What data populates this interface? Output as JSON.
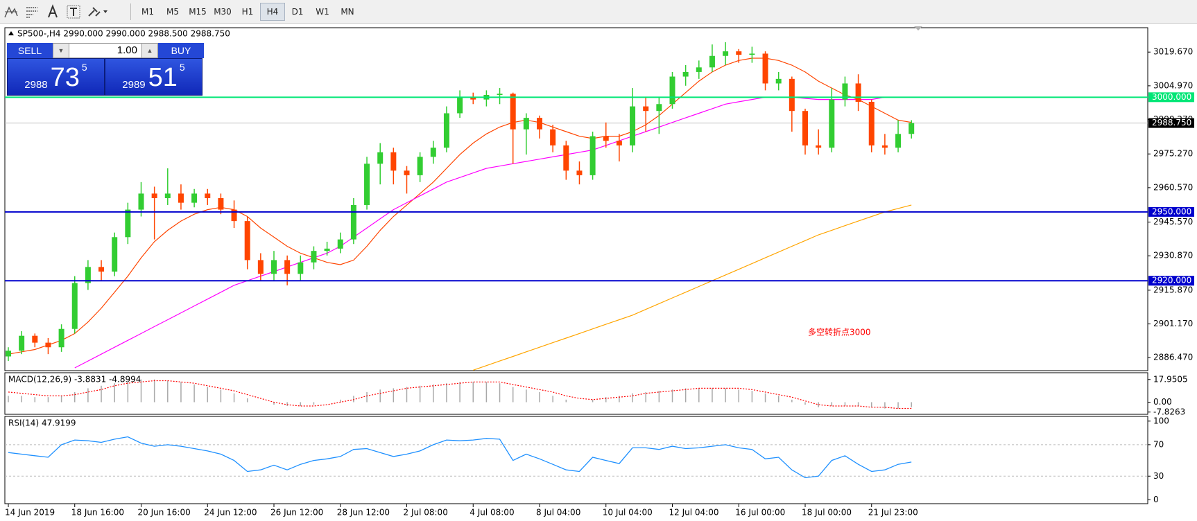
{
  "toolbar": {
    "timeframes": [
      "M1",
      "M5",
      "M15",
      "M30",
      "H1",
      "H4",
      "D1",
      "W1",
      "MN"
    ],
    "active": "H4"
  },
  "trade_panel": {
    "sell": "SELL",
    "buy": "BUY",
    "volume": "1.00",
    "bid": [
      "2988",
      "73",
      "5"
    ],
    "ask": [
      "2989",
      "51",
      "5"
    ]
  },
  "chart_data": [
    {
      "type": "candlestick",
      "title": "SP500-,H4  2990.000 2990.000 2988.500 2988.750",
      "categories": [
        "14 Jun 2019",
        null,
        null,
        null,
        null,
        "18 Jun 16:00",
        null,
        null,
        null,
        null,
        "20 Jun 16:00",
        null,
        null,
        null,
        null,
        "24 Jun 12:00",
        null,
        null,
        null,
        null,
        "26 Jun 12:00",
        null,
        null,
        null,
        null,
        "28 Jun 12:00",
        null,
        null,
        null,
        null,
        "2 Jul 08:00",
        null,
        null,
        null,
        null,
        "4 Jul 08:00",
        null,
        null,
        null,
        null,
        "8 Jul 04:00",
        null,
        null,
        null,
        null,
        "10 Jul 04:00",
        null,
        null,
        null,
        null,
        "12 Jul 04:00",
        null,
        null,
        null,
        null,
        "16 Jul 00:00",
        null,
        null,
        null,
        null,
        "18 Jul 00:00",
        null,
        null,
        null,
        null,
        "21 Jul 23:00",
        null,
        null,
        null
      ],
      "candles": [
        [
          2887,
          2891,
          2885,
          2889.5
        ],
        [
          2889.5,
          2898,
          2888,
          2896
        ],
        [
          2896,
          2897,
          2891,
          2893
        ],
        [
          2893,
          2895,
          2888,
          2891
        ],
        [
          2891,
          2901,
          2889,
          2899
        ],
        [
          2899,
          2922,
          2897,
          2919
        ],
        [
          2919,
          2929,
          2916,
          2926
        ],
        [
          2926,
          2929,
          2920,
          2924
        ],
        [
          2924,
          2941,
          2922,
          2939
        ],
        [
          2939,
          2954,
          2936,
          2951
        ],
        [
          2951,
          2963,
          2948,
          2958
        ],
        [
          2958,
          2961,
          2938,
          2956
        ],
        [
          2956,
          2969,
          2953,
          2958
        ],
        [
          2958,
          2962,
          2951,
          2954
        ],
        [
          2954,
          2960,
          2952,
          2958
        ],
        [
          2958,
          2960,
          2953,
          2956
        ],
        [
          2956,
          2958,
          2949,
          2951
        ],
        [
          2951,
          2955,
          2943,
          2946
        ],
        [
          2946,
          2948,
          2925,
          2929
        ],
        [
          2929,
          2932,
          2920,
          2923
        ],
        [
          2923,
          2933,
          2920,
          2929
        ],
        [
          2929,
          2931,
          2918,
          2923
        ],
        [
          2923,
          2931,
          2920,
          2928
        ],
        [
          2928,
          2935,
          2925,
          2933
        ],
        [
          2933,
          2937,
          2931,
          2934
        ],
        [
          2934,
          2941,
          2932,
          2938
        ],
        [
          2938,
          2956,
          2936,
          2953
        ],
        [
          2953,
          2974,
          2951,
          2971
        ],
        [
          2971,
          2980,
          2962,
          2976
        ],
        [
          2976,
          2978,
          2962,
          2968
        ],
        [
          2968,
          2970,
          2958,
          2966
        ],
        [
          2966,
          2976,
          2963,
          2974
        ],
        [
          2974,
          2981,
          2971,
          2978
        ],
        [
          2978,
          2996,
          2976,
          2993
        ],
        [
          2993,
          3003,
          2991,
          3000
        ],
        [
          3000,
          3002,
          2997,
          2999
        ],
        [
          2999,
          3003,
          2996,
          3001
        ],
        [
          3001,
          3004,
          2997,
          3001.5
        ],
        [
          3001.5,
          3002,
          2971,
          2986
        ],
        [
          2986,
          2993,
          2975,
          2991
        ],
        [
          2991,
          2992,
          2982,
          2986
        ],
        [
          2986,
          2988,
          2976,
          2979
        ],
        [
          2979,
          2981,
          2964,
          2968
        ],
        [
          2968,
          2972,
          2962,
          2966
        ],
        [
          2966,
          2985,
          2964,
          2983
        ],
        [
          2983,
          2989,
          2978,
          2981
        ],
        [
          2981,
          2984,
          2972,
          2979
        ],
        [
          2979,
          3004,
          2976,
          2996
        ],
        [
          2996,
          3000,
          2985,
          2994
        ],
        [
          2994,
          3000,
          2984,
          2997
        ],
        [
          2997,
          3011,
          2995,
          3009
        ],
        [
          3009,
          3014,
          3005,
          3011
        ],
        [
          3011,
          3016,
          3008,
          3013
        ],
        [
          3013,
          3023,
          3011,
          3018
        ],
        [
          3018,
          3024,
          3014,
          3020
        ],
        [
          3020,
          3021,
          3015,
          3018.5
        ],
        [
          3018.5,
          3022,
          3015,
          3019
        ],
        [
          3019,
          3020,
          3003,
          3006
        ],
        [
          3006,
          3011,
          3003,
          3008
        ],
        [
          3008,
          3009,
          2985,
          2994
        ],
        [
          2994,
          2995,
          2975,
          2979
        ],
        [
          2979,
          2986,
          2975,
          2978
        ],
        [
          2978,
          3004,
          2976,
          2999
        ],
        [
          2999,
          3009,
          2996,
          3006
        ],
        [
          3006,
          3010,
          2994,
          2998
        ],
        [
          2998,
          2999,
          2976,
          2979
        ],
        [
          2979,
          2984,
          2975,
          2978
        ],
        [
          2978,
          2990,
          2976,
          2984
        ],
        [
          2984,
          2990,
          2982,
          2988.75
        ]
      ],
      "up_color": "#32cd32",
      "down_color": "#ff4500",
      "ylim": [
        2880.8,
        3030.3
      ],
      "yticks": [
        {
          "value": 2886.47,
          "label": "2886.470"
        },
        {
          "value": 2901.17,
          "label": "2901.170"
        },
        {
          "value": 2915.87,
          "label": "2915.870"
        },
        {
          "value": 2930.87,
          "label": "2930.870"
        },
        {
          "value": 2945.57,
          "label": "2945.570"
        },
        {
          "value": 2960.57,
          "label": "2960.570"
        },
        {
          "value": 2975.27,
          "label": "2975.270"
        },
        {
          "value": 2990.27,
          "label": "2990.270"
        },
        {
          "value": 3004.97,
          "label": "3004.970"
        },
        {
          "value": 3019.67,
          "label": "3019.670"
        }
      ],
      "lines": [
        {
          "color": "#ff4500",
          "values": [
            2888,
            2889,
            2890,
            2892,
            2894,
            2897,
            2902,
            2908,
            2915,
            2922,
            2930,
            2937,
            2942,
            2946,
            2949,
            2951,
            2952,
            2951,
            2948,
            2943,
            2939,
            2935,
            2932,
            2930,
            2928,
            2927,
            2929,
            2935,
            2942,
            2948,
            2953,
            2958,
            2963,
            2969,
            2975,
            2980,
            2984,
            2987,
            2989,
            2990,
            2989,
            2987,
            2985,
            2983,
            2982,
            2983,
            2983,
            2985,
            2988,
            2992,
            2997,
            3002,
            3007,
            3011,
            3014,
            3016,
            3017,
            3017,
            3016,
            3014,
            3011,
            3007,
            3004,
            3001,
            2999,
            2996,
            2993,
            2990,
            2989
          ]
        },
        {
          "color": "#ff00ff",
          "values": [
            null,
            null,
            null,
            null,
            null,
            2882,
            2885,
            2888,
            2891,
            2894,
            2897,
            2900,
            2903,
            2906,
            2909,
            2912,
            2915,
            2918,
            2920,
            2922,
            2924,
            2926,
            2928,
            2930,
            2932,
            2935,
            2939,
            2943,
            2947,
            2951,
            2954,
            2957,
            2960,
            2963,
            2965,
            2967,
            2969,
            2970,
            2971,
            2972,
            2973,
            2974,
            2975,
            2976,
            2977,
            2979,
            2981,
            2983,
            2985,
            2987,
            2989,
            2991,
            2993,
            2995,
            2997,
            2998,
            2999,
            3000,
            3000,
            3000,
            2999.5,
            2999,
            2999,
            2999,
            2999,
            2999,
            3000,
            3000,
            3000
          ]
        },
        {
          "color": "#ffa500",
          "values": [
            null,
            null,
            null,
            null,
            null,
            null,
            null,
            null,
            null,
            null,
            null,
            null,
            null,
            null,
            null,
            null,
            null,
            null,
            null,
            null,
            null,
            null,
            null,
            null,
            null,
            null,
            null,
            null,
            null,
            null,
            null,
            null,
            null,
            null,
            null,
            2881,
            2883,
            2885,
            2887,
            2889,
            2891,
            2893,
            2895,
            2897,
            2899,
            2901,
            2903,
            2905,
            2907.5,
            2910,
            2912.5,
            2915,
            2917.5,
            2920,
            2922.5,
            2925,
            2927.5,
            2930,
            2932.5,
            2935,
            2937.5,
            2940,
            2942,
            2944,
            2946,
            2948,
            2950,
            2951.5,
            2953
          ]
        }
      ],
      "levels": [
        {
          "value": 3000,
          "label": "3000.000",
          "color": "#00e676"
        },
        {
          "value": 2950,
          "label": "2950.000",
          "color": "#0000cd"
        },
        {
          "value": 2920,
          "label": "2920.000",
          "color": "#0000cd"
        }
      ],
      "last_price": {
        "value": 2988.75,
        "label": "2988.750",
        "color": "#c0c0c0"
      },
      "annotation": "多空转折点3000",
      "annotation_color": "#ff0000"
    },
    {
      "type": "macd",
      "title": "MACD(12,26,9) -3.8831 -4.8994",
      "histogram": [
        5,
        5,
        4,
        4,
        5,
        8,
        11,
        13,
        15,
        17,
        18,
        18,
        17,
        16,
        14,
        12,
        10,
        7,
        3,
        0,
        -2,
        -3,
        -3,
        -2,
        0,
        2,
        5,
        8,
        10,
        11,
        12,
        13,
        14,
        15,
        16,
        16,
        16,
        15,
        12,
        10,
        8,
        5,
        2,
        0,
        2,
        4,
        5,
        7,
        8,
        9,
        10,
        11,
        11,
        11,
        11,
        10,
        9,
        7,
        5,
        2,
        -2,
        -4,
        -3,
        -3,
        -3,
        -4,
        -5,
        -5,
        -3.8831
      ],
      "signal": [
        8,
        7,
        6,
        5,
        5,
        6,
        8,
        10,
        13,
        15,
        16,
        17,
        17,
        16,
        15,
        13,
        11,
        9,
        6,
        3,
        0,
        -2,
        -3,
        -3,
        -2,
        0,
        2,
        5,
        7,
        9,
        11,
        12,
        13,
        14,
        15,
        16,
        16,
        16,
        14,
        12,
        10,
        8,
        5,
        3,
        2,
        3,
        4,
        5,
        7,
        8,
        9,
        10,
        11,
        11,
        11,
        11,
        10,
        8,
        6,
        4,
        1,
        -2,
        -3,
        -3,
        -3,
        -4,
        -4,
        -5,
        -4.8994
      ],
      "histogram_color": "#a8a8a8",
      "signal_color": "#ff0000",
      "ylim": [
        -9.6,
        23.3
      ],
      "yticks": [
        17.9505,
        {
          "value": 0,
          "label": "0.00"
        },
        -7.8263
      ]
    },
    {
      "type": "rsi",
      "title": "RSI(14) 47.9199",
      "values": [
        60,
        58,
        56,
        54,
        70,
        76,
        75,
        73,
        77,
        80,
        72,
        68,
        70,
        68,
        65,
        62,
        58,
        50,
        36,
        38,
        44,
        38,
        45,
        50,
        52,
        55,
        64,
        65,
        60,
        55,
        58,
        62,
        70,
        76,
        75,
        76,
        78,
        77,
        50,
        58,
        52,
        45,
        38,
        36,
        54,
        50,
        46,
        66,
        66,
        64,
        68,
        65,
        66,
        68,
        70,
        66,
        64,
        52,
        54,
        38,
        28,
        30,
        50,
        56,
        45,
        36,
        38,
        45,
        47.9199
      ],
      "color": "#1e90ff",
      "ylim": [
        -5,
        106
      ],
      "yticks": [
        100,
        70,
        30,
        0
      ],
      "levels": [
        70,
        30
      ]
    }
  ]
}
